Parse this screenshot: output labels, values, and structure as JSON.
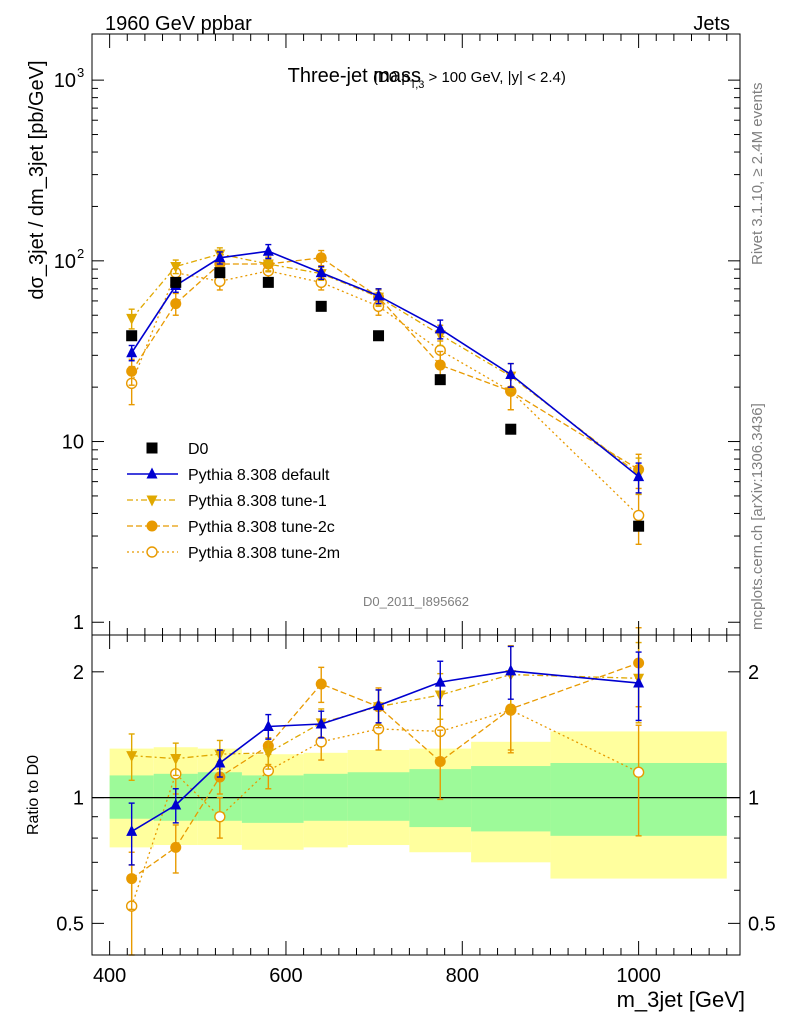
{
  "header": {
    "energy_label": "1960 GeV ppbar",
    "process_label": "Jets"
  },
  "side_labels": {
    "rivet": "Rivet 3.1.10, ≥ 2.4M events",
    "source": "mcplots.cern.ch [arXiv:1306.3436]"
  },
  "chart_data": [
    {
      "type": "line",
      "title_main": "Three-jet mass",
      "title_sub": "(D0 p",
      "title_sub_index": "T,3",
      "title_sub_tail": " > 100 GeV, |y| < 2.4)",
      "watermark": "D0_2011_I895662",
      "xlabel": "m_3jet [GeV]",
      "ylabel": "dσ_3jet / dm_3jet [pb/GeV]",
      "yscale": "log",
      "ylim": [
        0.85,
        1800
      ],
      "xlim": [
        380,
        1115
      ],
      "x_ticks": [
        "400",
        "600",
        "800",
        "1000"
      ],
      "y_tick_labels": {
        "1": "1",
        "10": "10",
        "100": "10",
        "1000": "10"
      },
      "y_tick_exp": {
        "100": "2",
        "1000": "3"
      },
      "x": [
        425,
        475,
        525,
        580,
        640,
        705,
        775,
        855,
        1000
      ],
      "series": [
        {
          "name": "D0",
          "color": "#000000",
          "marker": "square",
          "values": [
            38.5,
            76,
            86,
            76,
            56,
            38.5,
            22,
            11.7,
            3.4
          ],
          "yerr": [
            0,
            0,
            0,
            0,
            0,
            0,
            0,
            0,
            0
          ]
        },
        {
          "name": "Pythia 8.308 default",
          "color": "#0000d0",
          "marker": "triangle-up",
          "line": "solid",
          "values": [
            31,
            73,
            104,
            113,
            86,
            64,
            42,
            23.5,
            6.4
          ],
          "yerr": [
            3,
            6,
            8,
            10,
            7,
            6,
            5,
            3.5,
            1.2
          ]
        },
        {
          "name": "Pythia 8.308 tune-1",
          "color": "#e0a800",
          "marker": "triangle-down",
          "line": "dashdot",
          "values": [
            48,
            93,
            109,
            96,
            85,
            63,
            39,
            23,
            6.6
          ],
          "yerr": [
            6,
            8,
            9,
            8,
            7,
            6,
            5,
            4,
            1.5
          ]
        },
        {
          "name": "Pythia 8.308 tune-2c",
          "color": "#e89a00",
          "marker": "circle",
          "line": "dashed",
          "values": [
            24.5,
            58,
            96,
            96,
            104,
            63,
            26.5,
            19,
            7
          ],
          "yerr": [
            4,
            8,
            10,
            9,
            10,
            7,
            5,
            4,
            1.5
          ]
        },
        {
          "name": "Pythia 8.308 tune-2m",
          "color": "#e89a00",
          "marker": "open-circle",
          "line": "dotted",
          "values": [
            21,
            86,
            77,
            88,
            76,
            56,
            32,
            19,
            3.9
          ],
          "yerr": [
            5,
            8,
            8,
            8,
            7,
            6,
            4,
            4,
            1.2
          ]
        }
      ],
      "legend": {
        "placement": "lower-left"
      }
    },
    {
      "type": "line",
      "ylabel": "Ratio to D0",
      "yscale": "log",
      "ylim": [
        0.42,
        2.45
      ],
      "y_ticks": [
        "0.5",
        "1",
        "2"
      ],
      "reference_line": 1,
      "bands": {
        "edges": [
          400,
          450,
          500,
          550,
          620,
          670,
          740,
          810,
          900,
          1100
        ],
        "yellow_lo": [
          0.76,
          0.77,
          0.77,
          0.75,
          0.76,
          0.77,
          0.74,
          0.7,
          0.64,
          0.59
        ],
        "yellow_hi": [
          1.31,
          1.32,
          1.31,
          1.27,
          1.28,
          1.3,
          1.31,
          1.36,
          1.44,
          1.58
        ],
        "green_lo": [
          0.89,
          0.88,
          0.88,
          0.87,
          0.88,
          0.88,
          0.85,
          0.83,
          0.81,
          0.8
        ],
        "green_hi": [
          1.13,
          1.14,
          1.15,
          1.13,
          1.14,
          1.15,
          1.17,
          1.19,
          1.21,
          1.28
        ]
      },
      "x": [
        425,
        475,
        525,
        580,
        640,
        705,
        775,
        855,
        1000
      ],
      "series": [
        {
          "name": "Pythia 8.308 default",
          "values": [
            0.83,
            0.96,
            1.21,
            1.48,
            1.5,
            1.66,
            1.89,
            2.01,
            1.88
          ],
          "yerr": [
            0.14,
            0.09,
            0.09,
            0.1,
            0.11,
            0.15,
            0.23,
            0.29,
            0.35
          ]
        },
        {
          "name": "Pythia 8.308 tune-1",
          "values": [
            1.26,
            1.24,
            1.27,
            1.28,
            1.51,
            1.65,
            1.76,
            1.97,
            1.93
          ],
          "yerr": [
            0.16,
            0.11,
            0.1,
            0.11,
            0.12,
            0.16,
            0.22,
            0.34,
            0.42
          ]
        },
        {
          "name": "Pythia 8.308 tune-2c",
          "values": [
            0.64,
            0.76,
            1.12,
            1.33,
            1.87,
            1.65,
            1.22,
            1.63,
            2.1
          ],
          "yerr": [
            0.1,
            0.1,
            0.1,
            0.13,
            0.18,
            0.18,
            0.23,
            0.33,
            0.45
          ]
        },
        {
          "name": "Pythia 8.308 tune-2m",
          "values": [
            0.55,
            1.14,
            0.9,
            1.16,
            1.36,
            1.46,
            1.44,
            1.62,
            1.15
          ],
          "yerr": [
            0.14,
            0.12,
            0.1,
            0.11,
            0.13,
            0.16,
            0.22,
            0.34,
            0.34
          ]
        }
      ]
    }
  ]
}
